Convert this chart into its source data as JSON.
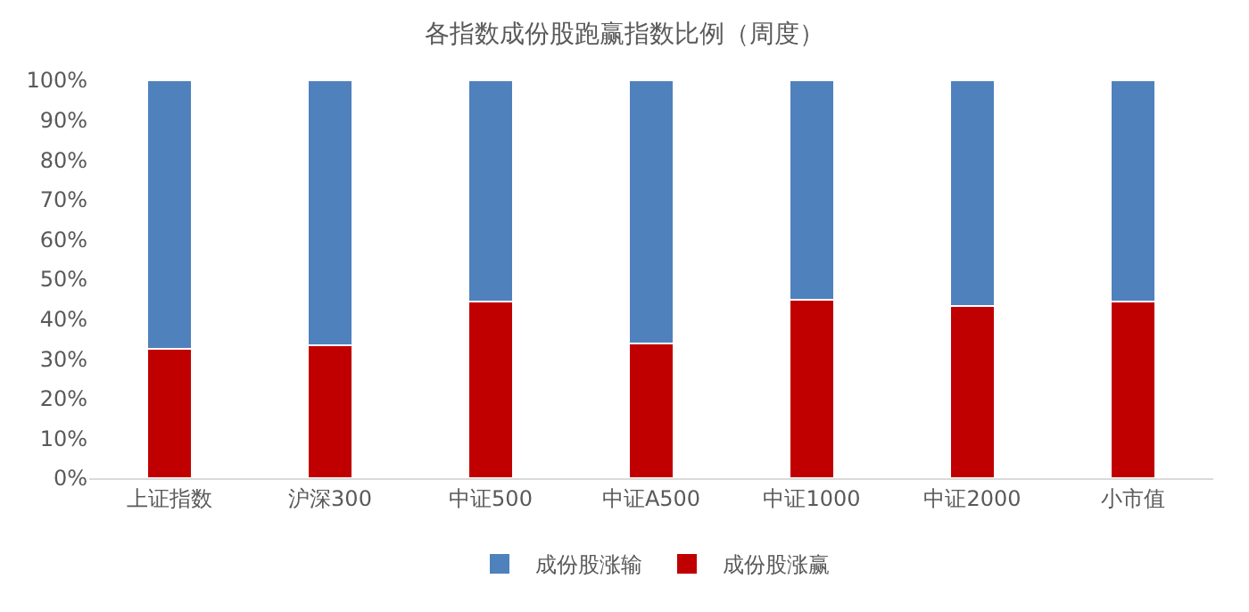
{
  "chart_data": {
    "type": "bar",
    "title": "各指数成份股跑赢指数比例（周度）",
    "categories": [
      "上证指数",
      "沪深300",
      "中证500",
      "中证A500",
      "中证1000",
      "中证2000",
      "小市值"
    ],
    "stacked": true,
    "series": [
      {
        "name": "成份股涨赢",
        "color": "#c00000",
        "values": [
          32.5,
          33.5,
          44.5,
          33.8,
          44.8,
          43.3,
          44.5
        ]
      },
      {
        "name": "成份股涨输",
        "color": "#4f81bd",
        "values": [
          67.5,
          66.5,
          55.5,
          66.2,
          55.2,
          56.7,
          55.5
        ]
      }
    ],
    "ylim": [
      0,
      100
    ],
    "yticks": [
      {
        "value": 0,
        "label": "0%"
      },
      {
        "value": 10,
        "label": "10%"
      },
      {
        "value": 20,
        "label": "20%"
      },
      {
        "value": 30,
        "label": "30%"
      },
      {
        "value": 40,
        "label": "40%"
      },
      {
        "value": 50,
        "label": "50%"
      },
      {
        "value": 60,
        "label": "60%"
      },
      {
        "value": 70,
        "label": "70%"
      },
      {
        "value": 80,
        "label": "80%"
      },
      {
        "value": 90,
        "label": "90%"
      },
      {
        "value": 100,
        "label": "100%"
      }
    ],
    "grid": false,
    "legend": "bottom"
  }
}
